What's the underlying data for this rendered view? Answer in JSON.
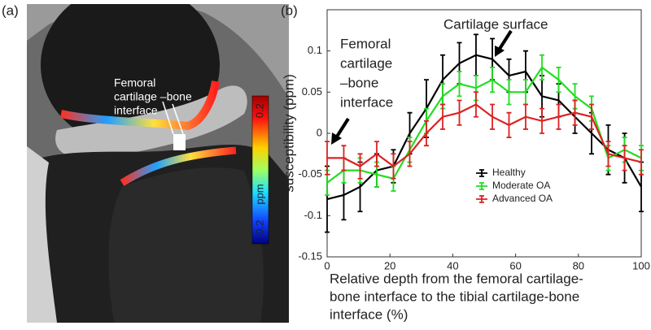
{
  "image_panel": {
    "panel_label": "(a)",
    "annotation": [
      "Femoral",
      "cartilage –bone",
      "interface"
    ],
    "colorbar": {
      "label": "ppm",
      "lim": [
        -0.25,
        0.25
      ],
      "ticks": [
        0.2,
        -0.2
      ]
    }
  },
  "chart_data": {
    "type": "line",
    "panel_label": "(b)",
    "ylabel": "susceptibility (ppm)",
    "xlabel": [
      "Relative depth from the femoral cartilage-",
      "bone interface to the tibial cartilage-bone",
      "interface (%)"
    ],
    "annotations": [
      {
        "text": [
          "Cartilage surface"
        ]
      },
      {
        "text": [
          "Femoral",
          "cartilage",
          "–bone",
          "interface"
        ]
      }
    ],
    "legend": "lower center",
    "xlim": [
      0,
      100
    ],
    "xticks": [
      0,
      20,
      40,
      60,
      80,
      100
    ],
    "ylim": [
      -0.15,
      0.15
    ],
    "yticks": [
      -0.15,
      -0.1,
      -0.05,
      0,
      0.05,
      0.1
    ],
    "x": [
      0,
      5.3,
      10.5,
      15.8,
      21.1,
      26.3,
      31.6,
      36.8,
      42.1,
      47.4,
      52.6,
      57.9,
      63.2,
      68.4,
      73.7,
      78.9,
      84.2,
      89.5,
      94.7,
      100
    ],
    "series": [
      {
        "name": "Healthy",
        "color": "#000000",
        "values": [
          -0.08,
          -0.075,
          -0.065,
          -0.045,
          -0.04,
          0.0,
          0.03,
          0.065,
          0.085,
          0.095,
          0.09,
          0.07,
          0.075,
          0.045,
          0.04,
          0.02,
          0.0,
          -0.02,
          -0.03,
          -0.065
        ],
        "errors": [
          0.04,
          0.03,
          0.03,
          0.02,
          0.02,
          0.025,
          0.035,
          0.03,
          0.025,
          0.025,
          0.025,
          0.02,
          0.025,
          0.025,
          0.02,
          0.02,
          0.025,
          0.03,
          0.03,
          0.03
        ]
      },
      {
        "name": "Moderate OA",
        "color": "#22dd22",
        "values": [
          -0.06,
          -0.045,
          -0.045,
          -0.05,
          -0.055,
          -0.02,
          0.015,
          0.045,
          0.06,
          0.055,
          0.065,
          0.05,
          0.05,
          0.08,
          0.065,
          0.045,
          0.03,
          -0.03,
          -0.02,
          -0.03
        ],
        "errors": [
          0.015,
          0.015,
          0.015,
          0.015,
          0.015,
          0.015,
          0.015,
          0.015,
          0.015,
          0.015,
          0.015,
          0.015,
          0.015,
          0.015,
          0.015,
          0.015,
          0.015,
          0.015,
          0.015,
          0.015
        ]
      },
      {
        "name": "Advanced OA",
        "color": "#dd2222",
        "values": [
          -0.03,
          -0.03,
          -0.04,
          -0.025,
          -0.04,
          -0.025,
          0.0,
          0.02,
          0.025,
          0.035,
          0.02,
          0.01,
          0.02,
          0.015,
          0.02,
          0.025,
          0.02,
          -0.025,
          -0.03,
          -0.035
        ],
        "errors": [
          0.02,
          0.015,
          0.015,
          0.015,
          0.015,
          0.015,
          0.015,
          0.015,
          0.015,
          0.015,
          0.015,
          0.015,
          0.015,
          0.015,
          0.015,
          0.015,
          0.015,
          0.015,
          0.015,
          0.015
        ]
      }
    ]
  }
}
